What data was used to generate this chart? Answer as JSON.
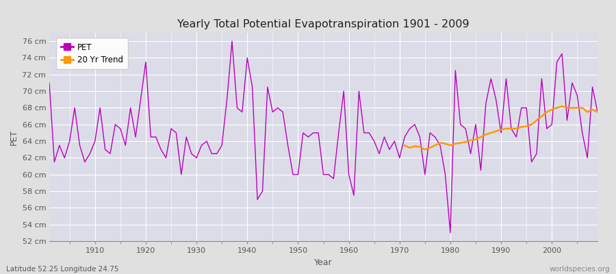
{
  "title": "Yearly Total Potential Evapotranspiration 1901 - 2009",
  "ylabel": "PET",
  "xlabel": "Year",
  "footnote_left": "Latitude 52.25 Longitude 24.75",
  "footnote_right": "worldspecies.org",
  "pet_color": "#bb00bb",
  "trend_color": "#ff9900",
  "fig_bg_color": "#e0e0e0",
  "plot_bg_color": "#dcdce8",
  "grid_color": "#ffffff",
  "tick_label_color": "#555555",
  "title_color": "#222222",
  "ylabel_color": "#555555",
  "xlabel_color": "#555555",
  "ylim": [
    52,
    77
  ],
  "yticks": [
    52,
    54,
    56,
    58,
    60,
    62,
    64,
    66,
    68,
    70,
    72,
    74,
    76
  ],
  "xticks": [
    1910,
    1920,
    1930,
    1940,
    1950,
    1960,
    1970,
    1980,
    1990,
    2000
  ],
  "xlim": [
    1901,
    2009
  ],
  "years": [
    1901,
    1902,
    1903,
    1904,
    1905,
    1906,
    1907,
    1908,
    1909,
    1910,
    1911,
    1912,
    1913,
    1914,
    1915,
    1916,
    1917,
    1918,
    1919,
    1920,
    1921,
    1922,
    1923,
    1924,
    1925,
    1926,
    1927,
    1928,
    1929,
    1930,
    1931,
    1932,
    1933,
    1934,
    1935,
    1936,
    1937,
    1938,
    1939,
    1940,
    1941,
    1942,
    1943,
    1944,
    1945,
    1946,
    1947,
    1948,
    1949,
    1950,
    1951,
    1952,
    1953,
    1954,
    1955,
    1956,
    1957,
    1958,
    1959,
    1960,
    1961,
    1962,
    1963,
    1964,
    1965,
    1966,
    1967,
    1968,
    1969,
    1970,
    1971,
    1972,
    1973,
    1974,
    1975,
    1976,
    1977,
    1978,
    1979,
    1980,
    1981,
    1982,
    1983,
    1984,
    1985,
    1986,
    1987,
    1988,
    1989,
    1990,
    1991,
    1992,
    1993,
    1994,
    1995,
    1996,
    1997,
    1998,
    1999,
    2000,
    2001,
    2002,
    2003,
    2004,
    2005,
    2006,
    2007,
    2008,
    2009
  ],
  "pet_values": [
    71.0,
    61.5,
    63.5,
    62.0,
    64.0,
    68.0,
    63.5,
    61.5,
    62.5,
    64.0,
    68.0,
    63.0,
    62.5,
    66.0,
    65.5,
    63.5,
    68.0,
    64.5,
    69.0,
    73.5,
    64.5,
    64.5,
    63.0,
    62.0,
    65.5,
    65.0,
    60.0,
    64.5,
    62.5,
    62.0,
    63.5,
    64.0,
    62.5,
    62.5,
    63.5,
    69.0,
    76.0,
    68.0,
    67.5,
    74.0,
    70.5,
    57.0,
    58.0,
    70.5,
    67.5,
    68.0,
    67.5,
    63.5,
    60.0,
    60.0,
    65.0,
    64.5,
    65.0,
    65.0,
    60.0,
    60.0,
    59.5,
    65.0,
    70.0,
    60.0,
    57.5,
    70.0,
    65.0,
    65.0,
    64.0,
    62.5,
    64.5,
    63.0,
    64.0,
    62.0,
    64.5,
    65.5,
    66.0,
    64.5,
    60.0,
    65.0,
    64.5,
    63.5,
    60.0,
    53.0,
    72.5,
    66.0,
    65.5,
    62.5,
    66.0,
    60.5,
    68.5,
    71.5,
    69.0,
    65.0,
    71.5,
    65.5,
    64.5,
    68.0,
    68.0,
    61.5,
    62.5,
    71.5,
    65.5,
    66.0,
    73.5,
    74.5,
    66.5,
    71.0,
    69.5,
    65.0,
    62.0,
    70.5,
    67.5
  ],
  "trend_years": [
    1971,
    1972,
    1973,
    1974,
    1975,
    1976,
    1977,
    1978,
    1979,
    1980,
    1981,
    1982,
    1983,
    1984,
    1985,
    1986,
    1987,
    1988,
    1989,
    1990,
    1991,
    1992,
    1993,
    1994,
    1995,
    1996,
    1997,
    1998,
    1999,
    2000,
    2001,
    2002,
    2003,
    2004,
    2005,
    2006,
    2007,
    2008,
    2009
  ],
  "trend_values": [
    63.5,
    63.2,
    63.4,
    63.3,
    63.0,
    63.2,
    63.5,
    63.8,
    63.7,
    63.5,
    63.7,
    63.8,
    63.9,
    64.1,
    64.2,
    64.5,
    64.8,
    65.0,
    65.2,
    65.4,
    65.5,
    65.5,
    65.5,
    65.7,
    65.8,
    66.0,
    66.5,
    67.0,
    67.5,
    67.8,
    68.0,
    68.2,
    68.0,
    68.0,
    68.0,
    68.0,
    67.5,
    67.8,
    67.5
  ]
}
